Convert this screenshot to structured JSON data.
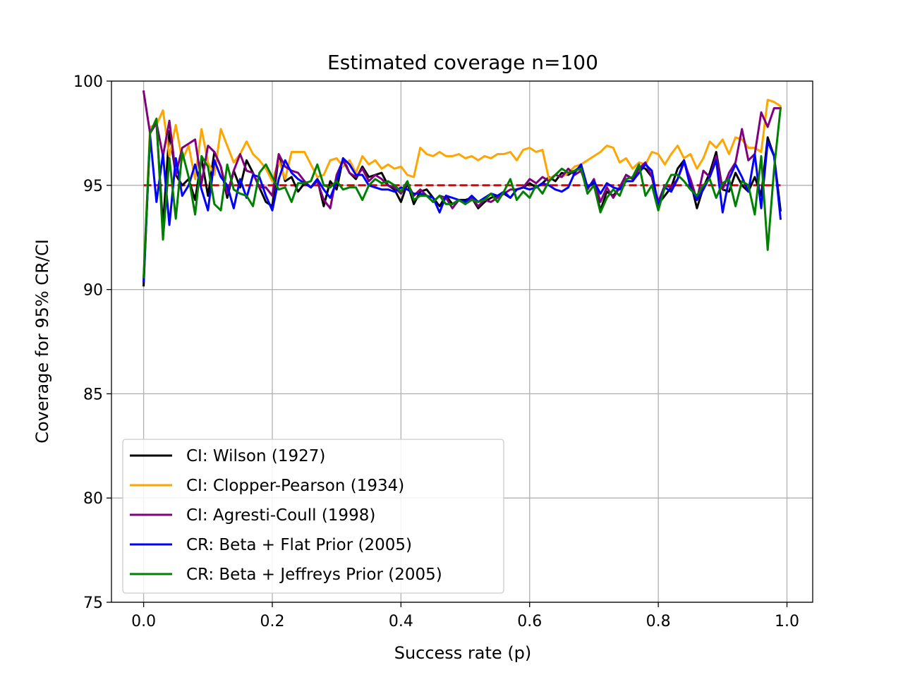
{
  "chart_data": {
    "type": "line",
    "title": "Estimated coverage n=100",
    "xlabel": "Success rate (p)",
    "ylabel": "Coverage for 95% CR/CI",
    "xlim": [
      -0.05,
      1.04
    ],
    "ylim": [
      75,
      100
    ],
    "x_ticks": [
      0.0,
      0.2,
      0.4,
      0.6,
      0.8,
      1.0
    ],
    "x_tick_labels": [
      "0.0",
      "0.2",
      "0.4",
      "0.6",
      "0.8",
      "1.0"
    ],
    "y_ticks": [
      75,
      80,
      85,
      90,
      95,
      100
    ],
    "y_tick_labels": [
      "75",
      "80",
      "85",
      "90",
      "95",
      "100"
    ],
    "grid": true,
    "legend_position": "lower-left",
    "x": [
      0.0,
      0.01,
      0.02,
      0.03,
      0.04,
      0.05,
      0.06,
      0.07,
      0.08,
      0.09,
      0.1,
      0.11,
      0.12,
      0.13,
      0.14,
      0.15,
      0.16,
      0.17,
      0.18,
      0.19,
      0.2,
      0.21,
      0.22,
      0.23,
      0.24,
      0.25,
      0.26,
      0.27,
      0.28,
      0.29,
      0.3,
      0.31,
      0.32,
      0.33,
      0.34,
      0.35,
      0.36,
      0.37,
      0.38,
      0.39,
      0.4,
      0.41,
      0.42,
      0.43,
      0.44,
      0.45,
      0.46,
      0.47,
      0.48,
      0.49,
      0.5,
      0.51,
      0.52,
      0.53,
      0.54,
      0.55,
      0.56,
      0.57,
      0.58,
      0.59,
      0.6,
      0.61,
      0.62,
      0.63,
      0.64,
      0.65,
      0.66,
      0.67,
      0.68,
      0.69,
      0.7,
      0.71,
      0.72,
      0.73,
      0.74,
      0.75,
      0.76,
      0.77,
      0.78,
      0.79,
      0.8,
      0.81,
      0.82,
      0.83,
      0.84,
      0.85,
      0.86,
      0.87,
      0.88,
      0.89,
      0.9,
      0.91,
      0.92,
      0.93,
      0.94,
      0.95,
      0.96,
      0.97,
      0.98,
      0.99
    ],
    "reference": {
      "y": 95,
      "color": "#e00000",
      "style": "dashed"
    },
    "series": [
      {
        "name": "CI: Wilson (1927)",
        "color": "#000000",
        "values": [
          90.2,
          97.5,
          98.0,
          93.0,
          97.6,
          95.5,
          95.0,
          95.3,
          94.3,
          96.3,
          94.5,
          96.6,
          95.9,
          94.4,
          95.7,
          94.9,
          96.2,
          95.6,
          94.9,
          94.2,
          94.0,
          96.4,
          95.2,
          95.4,
          94.7,
          95.1,
          94.9,
          95.3,
          94.0,
          95.2,
          94.8,
          96.3,
          95.6,
          95.3,
          95.9,
          95.4,
          95.5,
          95.6,
          95.0,
          94.8,
          94.2,
          95.1,
          94.1,
          94.7,
          94.8,
          94.4,
          94.0,
          94.5,
          94.1,
          94.3,
          94.3,
          94.4,
          93.9,
          94.2,
          94.4,
          94.5,
          94.6,
          94.4,
          94.8,
          94.9,
          95.1,
          94.9,
          95.1,
          95.4,
          95.2,
          95.6,
          95.5,
          95.7,
          95.9,
          94.9,
          95.1,
          93.8,
          94.7,
          94.5,
          94.9,
          95.5,
          95.3,
          95.9,
          95.8,
          95.4,
          94.1,
          94.5,
          94.9,
          95.8,
          96.2,
          95.2,
          93.9,
          94.9,
          95.6,
          96.6,
          94.8,
          94.7,
          95.6,
          95.0,
          94.7,
          95.4,
          94.5,
          97.3,
          96.4,
          93.8
        ]
      },
      {
        "name": "CI: Clopper-Pearson (1934)",
        "color": "#ffa500",
        "values": [
          90.5,
          97.8,
          97.9,
          98.6,
          96.4,
          97.9,
          96.2,
          96.9,
          95.3,
          97.7,
          96.1,
          95.5,
          97.7,
          96.9,
          96.1,
          96.5,
          97.1,
          96.5,
          96.2,
          95.8,
          95.2,
          96.2,
          95.3,
          96.6,
          96.6,
          96.6,
          96.0,
          95.4,
          95.5,
          96.2,
          96.3,
          95.9,
          96.2,
          95.6,
          96.4,
          96.0,
          96.2,
          95.8,
          96.0,
          95.8,
          95.9,
          95.5,
          95.4,
          96.8,
          96.5,
          96.4,
          96.6,
          96.4,
          96.4,
          96.5,
          96.3,
          96.4,
          96.2,
          96.4,
          96.3,
          96.5,
          96.5,
          96.6,
          96.2,
          96.7,
          96.8,
          96.6,
          96.7,
          95.3,
          95.5,
          95.4,
          95.6,
          95.9,
          96.0,
          96.2,
          96.4,
          96.6,
          96.9,
          96.8,
          96.1,
          96.3,
          95.8,
          96.1,
          96.0,
          96.6,
          96.5,
          96.0,
          96.5,
          96.9,
          96.3,
          96.5,
          95.8,
          96.3,
          97.1,
          96.8,
          97.2,
          96.5,
          97.3,
          97.2,
          96.8,
          96.8,
          96.6,
          99.1,
          99.0,
          98.8
        ]
      },
      {
        "name": "CI: Agresti-Coull (1998)",
        "color": "#800080",
        "values": [
          99.5,
          97.5,
          98.0,
          96.4,
          98.1,
          95.5,
          96.8,
          97.0,
          97.2,
          95.1,
          96.9,
          96.6,
          95.9,
          94.6,
          95.7,
          96.5,
          95.7,
          95.6,
          94.9,
          94.9,
          94.5,
          96.5,
          95.9,
          95.7,
          95.6,
          95.2,
          94.9,
          95.2,
          94.3,
          93.9,
          95.5,
          96.2,
          95.6,
          95.4,
          95.8,
          95.2,
          95.5,
          95.3,
          95.0,
          94.9,
          94.6,
          95.1,
          94.5,
          94.8,
          94.5,
          94.2,
          94.5,
          94.4,
          93.9,
          94.3,
          94.1,
          94.4,
          94.0,
          94.3,
          94.2,
          94.4,
          94.6,
          94.8,
          94.8,
          94.9,
          95.3,
          95.1,
          95.4,
          95.2,
          95.5,
          95.4,
          95.8,
          95.5,
          95.7,
          94.8,
          95.3,
          94.2,
          94.9,
          94.4,
          94.9,
          95.5,
          95.3,
          95.8,
          96.1,
          95.4,
          94.2,
          95.0,
          94.9,
          95.3,
          96.1,
          95.3,
          94.3,
          95.7,
          95.4,
          96.4,
          94.8,
          95.6,
          96.1,
          97.7,
          96.2,
          96.5,
          98.5,
          97.8,
          98.7,
          98.7
        ]
      },
      {
        "name": "CR: Beta + Flat Prior (2005)",
        "color": "#0000ff",
        "values": [
          90.4,
          97.4,
          94.2,
          96.5,
          93.1,
          96.3,
          94.5,
          95.0,
          96.0,
          94.8,
          93.8,
          96.2,
          95.4,
          95.0,
          93.9,
          95.3,
          94.4,
          95.5,
          95.4,
          94.5,
          93.8,
          95.3,
          96.2,
          95.6,
          95.3,
          95.1,
          94.9,
          95.3,
          94.8,
          94.4,
          95.2,
          96.3,
          96.0,
          95.5,
          95.5,
          95.0,
          94.9,
          94.8,
          94.8,
          94.7,
          94.9,
          94.8,
          94.6,
          94.6,
          94.5,
          94.4,
          93.7,
          94.5,
          94.4,
          94.3,
          94.2,
          94.5,
          94.2,
          94.4,
          94.6,
          94.5,
          94.7,
          94.4,
          94.8,
          94.9,
          94.8,
          94.9,
          95.1,
          95.0,
          94.8,
          94.7,
          94.9,
          95.6,
          96.0,
          94.9,
          95.2,
          94.6,
          95.1,
          94.9,
          94.8,
          95.2,
          95.2,
          95.6,
          96.0,
          95.7,
          94.0,
          94.9,
          94.7,
          95.3,
          96.2,
          94.9,
          94.3,
          94.8,
          95.4,
          96.2,
          93.7,
          95.3,
          96.0,
          95.4,
          94.7,
          96.5,
          93.9,
          97.1,
          96.4,
          93.4
        ]
      },
      {
        "name": "CR: Beta + Jeffreys Prior (2005)",
        "color": "#008000",
        "values": [
          90.6,
          97.5,
          98.2,
          92.4,
          96.3,
          93.4,
          96.6,
          95.4,
          93.6,
          96.4,
          95.9,
          94.1,
          93.8,
          96.0,
          94.8,
          94.6,
          94.5,
          94.0,
          95.6,
          96.0,
          95.4,
          94.8,
          94.9,
          94.2,
          95.1,
          95.1,
          95.2,
          96.0,
          95.0,
          94.9,
          95.2,
          94.8,
          94.9,
          94.9,
          94.3,
          95.0,
          95.3,
          95.1,
          95.2,
          95.0,
          94.7,
          95.2,
          94.3,
          94.5,
          94.5,
          94.2,
          94.5,
          94.1,
          94.1,
          94.3,
          94.1,
          94.3,
          94.2,
          94.3,
          94.6,
          94.2,
          94.7,
          95.3,
          94.3,
          94.7,
          94.4,
          95.0,
          94.6,
          95.2,
          95.5,
          95.8,
          95.6,
          95.7,
          95.8,
          94.6,
          95.0,
          93.7,
          94.4,
          94.8,
          94.5,
          95.3,
          95.4,
          96.0,
          94.5,
          95.0,
          93.8,
          94.9,
          95.5,
          95.5,
          95.2,
          94.8,
          94.5,
          95.0,
          95.3,
          94.4,
          95.1,
          95.3,
          94.0,
          95.2,
          95.0,
          93.6,
          96.4,
          91.9,
          95.8,
          98.7
        ]
      }
    ]
  }
}
